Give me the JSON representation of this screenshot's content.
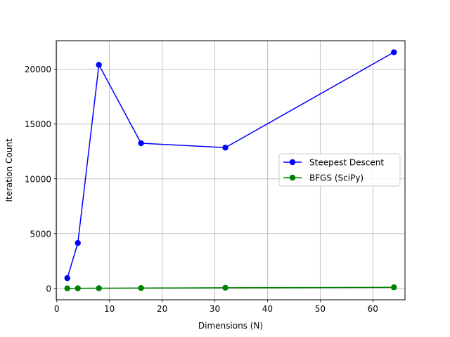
{
  "chart_data": {
    "type": "line",
    "title": "",
    "xlabel": "Dimensions (N)",
    "ylabel": "Iteration Count",
    "xlim": [
      -0.1,
      66.1
    ],
    "ylim": [
      -1028,
      22600
    ],
    "xticks": [
      0,
      10,
      20,
      30,
      40,
      50,
      60
    ],
    "yticks": [
      0,
      5000,
      10000,
      15000,
      20000
    ],
    "grid": true,
    "legend_position": "center-right",
    "x": [
      2,
      4,
      8,
      16,
      32,
      64
    ],
    "series": [
      {
        "name": "Steepest Descent",
        "color": "#0000ff",
        "marker": "circle",
        "values": [
          950,
          4150,
          20400,
          13250,
          12850,
          21550
        ]
      },
      {
        "name": "BFGS (SciPy)",
        "color": "#008000",
        "marker": "circle",
        "values": [
          15,
          20,
          30,
          45,
          70,
          110
        ]
      }
    ]
  }
}
